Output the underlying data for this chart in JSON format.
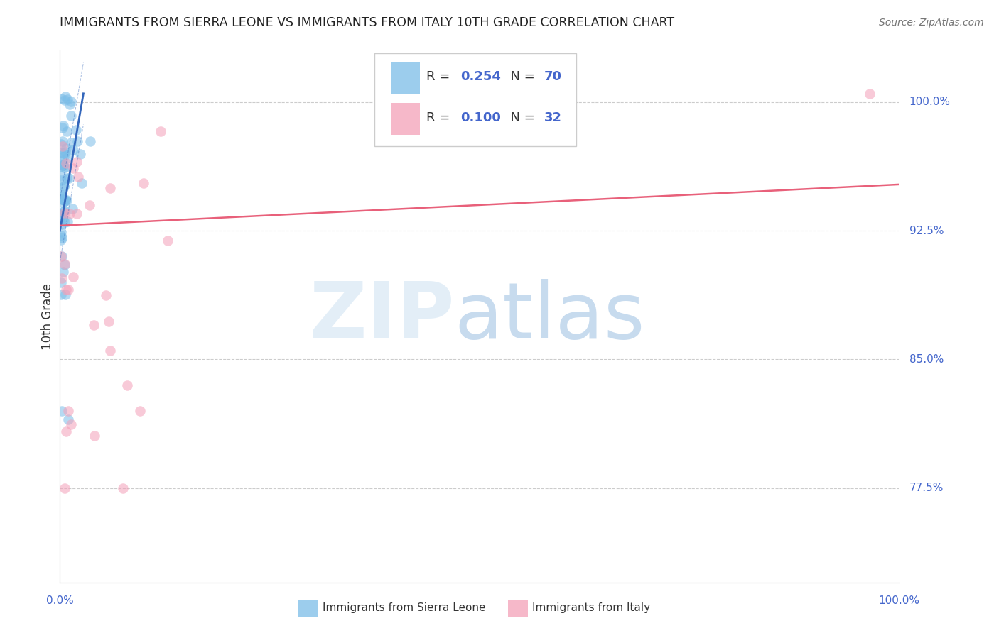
{
  "title": "IMMIGRANTS FROM SIERRA LEONE VS IMMIGRANTS FROM ITALY 10TH GRADE CORRELATION CHART",
  "source": "Source: ZipAtlas.com",
  "ylabel": "10th Grade",
  "blue_color": "#7bbde8",
  "pink_color": "#f4a0b8",
  "blue_line_color": "#3366bb",
  "pink_line_color": "#e8607a",
  "axis_tick_color": "#4466cc",
  "legend_text_color": "#4466cc",
  "legend_r_color": "#333333",
  "xlim": [
    0.0,
    1.0
  ],
  "ylim": [
    0.72,
    1.03
  ],
  "ytick_positions": [
    1.0,
    0.925,
    0.85,
    0.775
  ],
  "ytick_labels": [
    "100.0%",
    "92.5%",
    "85.0%",
    "77.5%"
  ],
  "blue_trend_x": [
    0.0,
    0.028
  ],
  "blue_trend_y": [
    0.925,
    1.005
  ],
  "pink_trend_x": [
    0.0,
    1.0
  ],
  "pink_trend_y": [
    0.928,
    0.952
  ]
}
